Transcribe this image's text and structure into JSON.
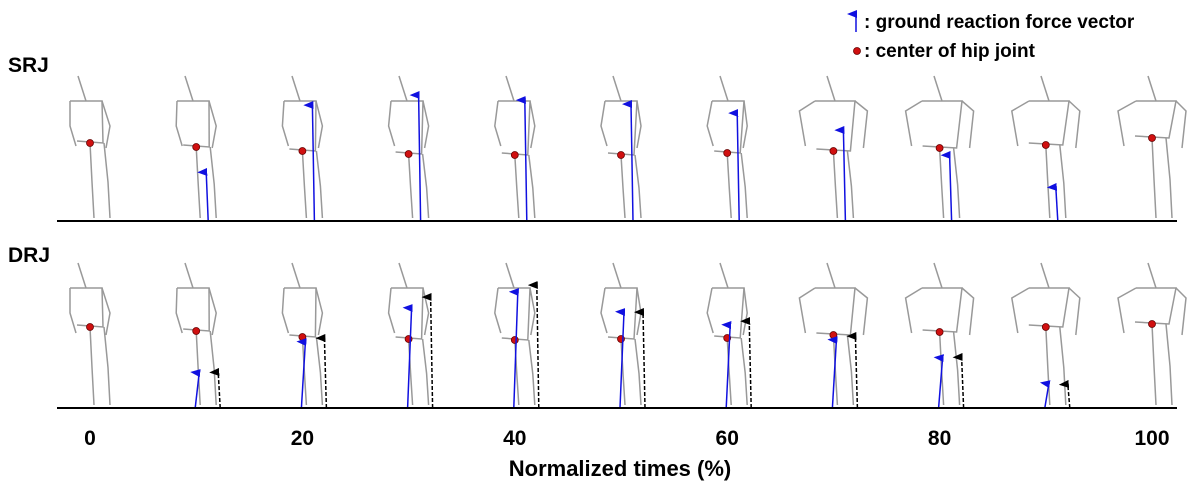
{
  "legend": {
    "items": [
      ": ground reaction force vector",
      ": center of hip joint"
    ]
  },
  "rows": [
    {
      "label": "SRJ"
    },
    {
      "label": "DRJ"
    }
  ],
  "axis": {
    "ticks": [
      "0",
      "20",
      "40",
      "60",
      "80",
      "100"
    ],
    "label": "Normalized times (%)"
  }
}
